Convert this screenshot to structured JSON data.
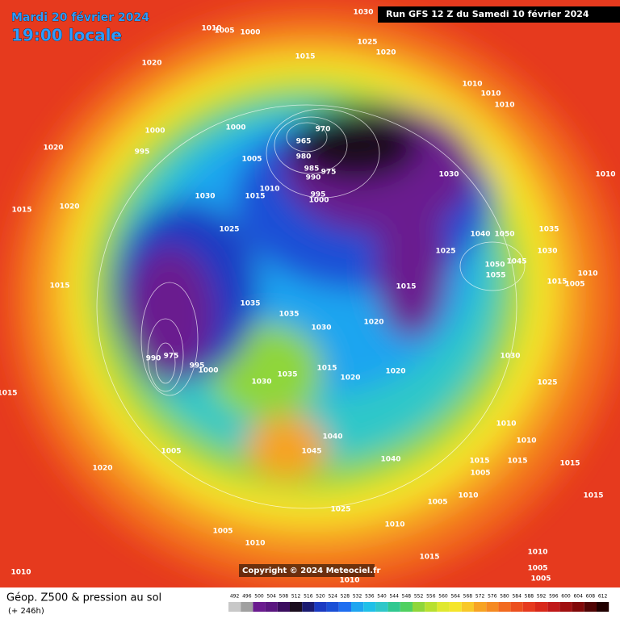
{
  "header": {
    "date": "Mardi 20 février 2024",
    "time": "19:00 locale",
    "run": "Run GFS 12 Z du Samedi 10 février 2024"
  },
  "footer": {
    "title": "Géop. Z500 & pression au sol",
    "lead": "(+ 246h)",
    "copyright": "Copyright © 2024 Meteociel.fr"
  },
  "colorbar": {
    "ticks": [
      492,
      496,
      500,
      504,
      508,
      512,
      516,
      520,
      524,
      528,
      532,
      536,
      540,
      544,
      548,
      552,
      556,
      560,
      564,
      568,
      572,
      576,
      580,
      584,
      588,
      592,
      596,
      600,
      604,
      608,
      612
    ]
  },
  "isobar_labels": [
    "1030",
    "1010",
    "1005",
    "1000",
    "1025",
    "1015",
    "1020",
    "1020",
    "1010",
    "1010",
    "1010",
    "1000",
    "1000",
    "970",
    "965",
    "995",
    "980",
    "1020",
    "1005",
    "985",
    "975",
    "990",
    "1030",
    "1010",
    "1010",
    "995",
    "1030",
    "1015",
    "1000",
    "1020",
    "1015",
    "1025",
    "1035",
    "1040",
    "1050",
    "1030",
    "1025",
    "1015",
    "1015",
    "1015",
    "1005",
    "1010",
    "1050",
    "1055",
    "1045",
    "1035",
    "1035",
    "1030",
    "1020",
    "990",
    "975",
    "995",
    "1000",
    "1030",
    "1015",
    "1020",
    "1020",
    "1030",
    "1035",
    "1025",
    "1015",
    "1010",
    "1010",
    "1005",
    "1045",
    "1040",
    "1040",
    "1015",
    "1005",
    "1015",
    "1015",
    "1020",
    "1005",
    "1010",
    "1015",
    "1025",
    "1010",
    "1005",
    "1010",
    "1010",
    "1015",
    "1010",
    "1005",
    "1005",
    "1010"
  ]
}
